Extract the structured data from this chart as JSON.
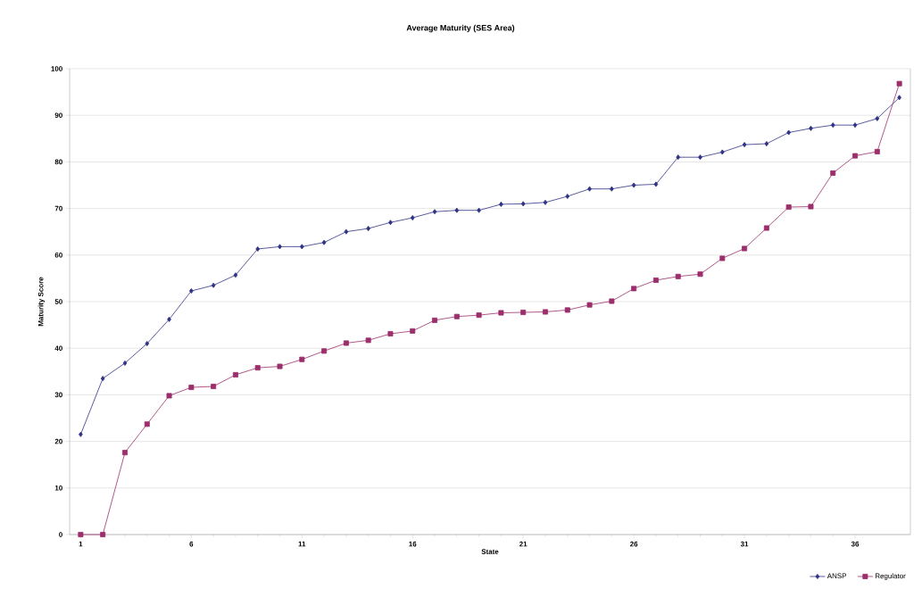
{
  "chart_data": {
    "type": "line",
    "title": "Average Maturity (SES Area)",
    "xlabel": "State",
    "ylabel": "Maturity Score",
    "x": [
      1,
      2,
      3,
      4,
      5,
      6,
      7,
      8,
      9,
      10,
      11,
      12,
      13,
      14,
      15,
      16,
      17,
      18,
      19,
      20,
      21,
      22,
      23,
      24,
      25,
      26,
      27,
      28,
      29,
      30,
      31,
      32,
      33,
      34,
      35,
      36,
      37,
      38
    ],
    "series": [
      {
        "name": "ANSP",
        "color": "#2e3184",
        "marker": "diamond",
        "values": [
          21.5,
          33.5,
          36.8,
          41,
          46.2,
          52.3,
          53.5,
          55.7,
          61.3,
          61.8,
          61.8,
          62.7,
          65,
          65.7,
          67,
          68,
          69.3,
          69.6,
          69.6,
          70.9,
          71,
          71.3,
          72.6,
          74.2,
          74.2,
          75,
          75.2,
          81,
          81,
          82.1,
          83.7,
          83.9,
          86.3,
          87.2,
          87.9,
          87.9,
          89.3,
          93.8
        ]
      },
      {
        "name": "Regulator",
        "color": "#9b2e6b",
        "marker": "square",
        "values": [
          0,
          0,
          17.6,
          23.7,
          29.8,
          31.6,
          31.8,
          34.3,
          35.8,
          36.1,
          37.6,
          39.4,
          41.1,
          41.7,
          43.1,
          43.7,
          46,
          46.8,
          47.1,
          47.6,
          47.7,
          47.8,
          48.2,
          49.3,
          50.1,
          52.8,
          54.6,
          55.4,
          55.9,
          59.3,
          61.4,
          65.8,
          70.3,
          70.4,
          77.6,
          81.3,
          82.2,
          96.8
        ]
      }
    ],
    "xlim": [
      0.5,
      38.5
    ],
    "xticks": [
      1,
      6,
      11,
      16,
      21,
      26,
      31,
      36
    ],
    "ylim": [
      0,
      100
    ],
    "yticks": [
      0,
      10,
      20,
      30,
      40,
      50,
      60,
      70,
      80,
      90,
      100
    ],
    "grid": "y",
    "legend": "bottom right",
    "line_style": "solid"
  }
}
